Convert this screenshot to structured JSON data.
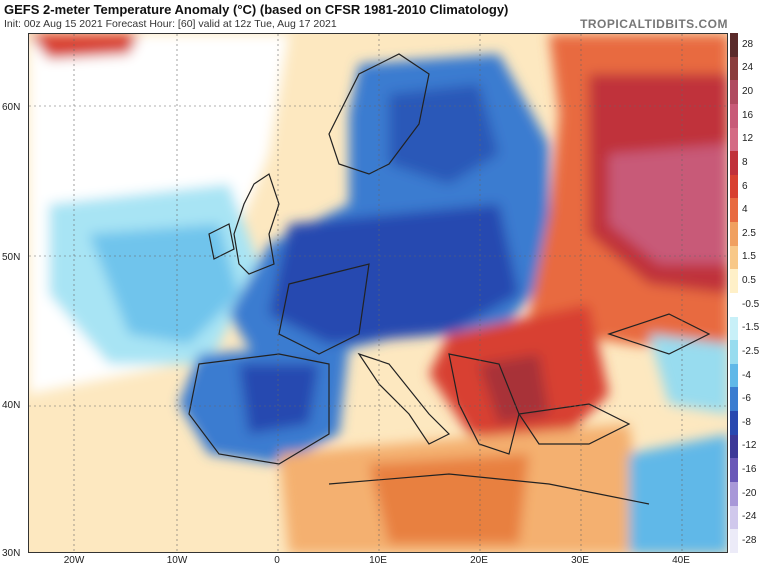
{
  "header": {
    "title": "GEFS 2-meter Temperature Anomaly (°C) (based on CFSR 1981-2010 Climatology)",
    "subtitle": "Init: 00z Aug 15 2021   Forecast Hour: [60]   valid at 12z Tue, Aug 17 2021",
    "brand": "TROPICALTIDBITS.COM"
  },
  "lat_labels": [
    "60N",
    "50N",
    "40N",
    "30N"
  ],
  "lon_labels": [
    "20W",
    "10W",
    "0",
    "10E",
    "20E",
    "30E",
    "40E"
  ],
  "colorbar": {
    "levels": [
      "28",
      "24",
      "20",
      "16",
      "12",
      "8",
      "6",
      "4",
      "2.5",
      "1.5",
      "0.5",
      "-0.5",
      "-1.5",
      "-2.5",
      "-4",
      "-6",
      "-8",
      "-12",
      "-16",
      "-20",
      "-24",
      "-28"
    ],
    "colors": [
      "#5a2a2a",
      "#8a3d3d",
      "#b04a60",
      "#c85a78",
      "#d46a84",
      "#c0303a",
      "#d84030",
      "#e86a40",
      "#f0a060",
      "#f8c888",
      "#fff0c8",
      "#ffffff",
      "#c8f0f8",
      "#98dcef",
      "#60b8e8",
      "#3a7cd0",
      "#2848b0",
      "#3c3898",
      "#6a58b8",
      "#a898d8",
      "#d0c8ec",
      "#ecebf8"
    ]
  }
}
